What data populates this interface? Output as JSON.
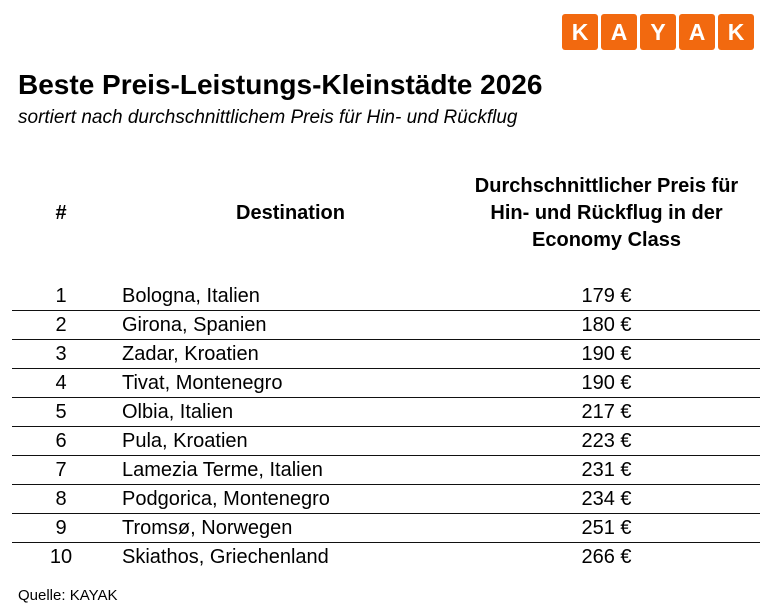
{
  "logo": {
    "letters": [
      "K",
      "A",
      "Y",
      "A",
      "K"
    ],
    "brand_color": "#F2690F",
    "letter_color": "#FFFFFF"
  },
  "header": {
    "title": "Beste Preis-Leistungs-Kleinstädte 2026",
    "subtitle": "sortiert nach durchschnittlichem Preis für Hin- und Rückflug"
  },
  "table": {
    "columns": {
      "rank": "#",
      "destination": "Destination",
      "price": "Durchschnittlicher Preis für Hin- und Rückflug in der Economy Class",
      "price_lines": [
        "Durchschnittlicher Preis für",
        "Hin- und Rückflug in der",
        "Economy Class"
      ]
    },
    "rows": [
      {
        "rank": "1",
        "destination": "Bologna, Italien",
        "price": "179 €"
      },
      {
        "rank": "2",
        "destination": "Girona, Spanien",
        "price": "180 €"
      },
      {
        "rank": "3",
        "destination": "Zadar, Kroatien",
        "price": "190 €"
      },
      {
        "rank": "4",
        "destination": "Tivat, Montenegro",
        "price": "190 €"
      },
      {
        "rank": "5",
        "destination": "Olbia, Italien",
        "price": "217 €"
      },
      {
        "rank": "6",
        "destination": "Pula, Kroatien",
        "price": "223 €"
      },
      {
        "rank": "7",
        "destination": "Lamezia Terme, Italien",
        "price": "231 €"
      },
      {
        "rank": "8",
        "destination": "Podgorica, Montenegro",
        "price": "234 €"
      },
      {
        "rank": "9",
        "destination": "Tromsø, Norwegen",
        "price": "251 €"
      },
      {
        "rank": "10",
        "destination": "Skiathos, Griechenland",
        "price": "266 €"
      }
    ]
  },
  "footer": {
    "source": "Quelle: KAYAK"
  },
  "chart_data": {
    "type": "table",
    "title": "Beste Preis-Leistungs-Kleinstädte 2026",
    "subtitle": "sortiert nach durchschnittlichem Preis für Hin- und Rückflug",
    "columns": [
      "#",
      "Destination",
      "Durchschnittlicher Preis für Hin- und Rückflug in der Economy Class"
    ],
    "rows": [
      [
        1,
        "Bologna, Italien",
        179
      ],
      [
        2,
        "Girona, Spanien",
        180
      ],
      [
        3,
        "Zadar, Kroatien",
        190
      ],
      [
        4,
        "Tivat, Montenegro",
        190
      ],
      [
        5,
        "Olbia, Italien",
        217
      ],
      [
        6,
        "Pula, Kroatien",
        223
      ],
      [
        7,
        "Lamezia Terme, Italien",
        231
      ],
      [
        8,
        "Podgorica, Montenegro",
        234
      ],
      [
        9,
        "Tromsø, Norwegen",
        251
      ],
      [
        10,
        "Skiathos, Griechenland",
        266
      ]
    ],
    "currency": "€",
    "source": "Quelle: KAYAK"
  }
}
